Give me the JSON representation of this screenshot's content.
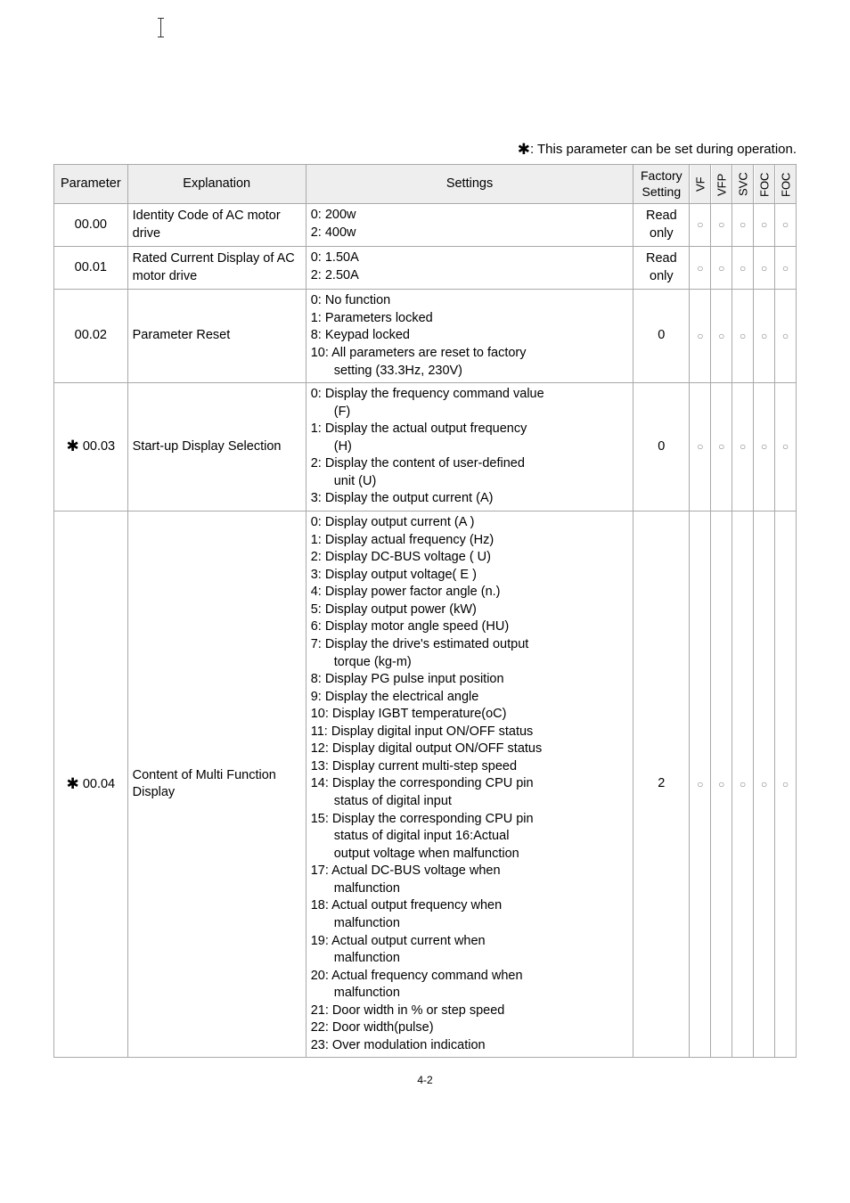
{
  "note_prefix_glyph": "✱",
  "note_text": ": This parameter can be set during operation.",
  "header": {
    "parameter": "Parameter",
    "explanation": "Explanation",
    "settings": "Settings",
    "factory_line1": "Factory",
    "factory_line2": "Setting",
    "modes": [
      "VF",
      "VFP",
      "SVC",
      "FOC",
      "FOC"
    ]
  },
  "rows": [
    {
      "param": "00.00",
      "star": false,
      "explanation": "Identity Code of AC motor drive",
      "settings": [
        "0: 200w",
        "2: 400w"
      ],
      "factory": "Read only",
      "marks": [
        "○",
        "○",
        "○",
        "○",
        "○"
      ]
    },
    {
      "param": "00.01",
      "star": false,
      "explanation": "Rated Current Display of AC motor drive",
      "settings": [
        "0: 1.50A",
        "2: 2.50A"
      ],
      "factory": "Read only",
      "marks": [
        "○",
        "○",
        "○",
        "○",
        "○"
      ]
    },
    {
      "param": "00.02",
      "star": false,
      "explanation": "Parameter Reset",
      "settings": [
        "0: No function",
        "1: Parameters locked",
        "8: Keypad locked",
        "10: All parameters are reset to factory",
        {
          "indent": 1,
          "text": "setting (33.3Hz, 230V)"
        }
      ],
      "factory": "0",
      "marks": [
        "○",
        "○",
        "○",
        "○",
        "○"
      ]
    },
    {
      "param": "00.03",
      "star": true,
      "explanation": "Start-up Display Selection",
      "settings": [
        "0: Display the frequency command value",
        {
          "indent": 1,
          "text": "(F)"
        },
        "1: Display the actual output frequency",
        {
          "indent": 1,
          "text": "(H)"
        },
        "2: Display the content of user-defined",
        {
          "indent": 1,
          "text": "unit (U)"
        },
        "3: Display the output current (A)"
      ],
      "factory": "0",
      "marks": [
        "○",
        "○",
        "○",
        "○",
        "○"
      ]
    },
    {
      "param": "00.04",
      "star": true,
      "explanation": "Content of Multi Function Display",
      "settings": [
        "0: Display output current (A )",
        "1: Display actual frequency (Hz)",
        "2: Display DC-BUS voltage ( U)",
        "3: Display output voltage( E )",
        "4: Display power factor angle (n.)",
        "5: Display output power (kW)",
        "6: Display motor angle speed (HU)",
        "7: Display the drive's estimated output",
        {
          "indent": 1,
          "text": "torque (kg-m)"
        },
        "8: Display PG pulse input position",
        "9: Display the electrical angle",
        "10: Display IGBT temperature(oC)",
        "11: Display digital input ON/OFF status",
        "12: Display digital output ON/OFF status",
        "13: Display current multi-step speed",
        "14: Display the corresponding CPU pin",
        {
          "indent": 1,
          "text": "status of digital input"
        },
        "15: Display the corresponding CPU pin",
        {
          "indent": 1,
          "text": "status of digital input 16:Actual"
        },
        {
          "indent": 1,
          "text": "output voltage when malfunction"
        },
        "17: Actual DC-BUS voltage when",
        {
          "indent": 1,
          "text": "malfunction"
        },
        "18: Actual output frequency when",
        {
          "indent": 1,
          "text": "malfunction"
        },
        "19: Actual output current when",
        {
          "indent": 1,
          "text": "malfunction"
        },
        "20: Actual frequency command when",
        {
          "indent": 1,
          "text": "malfunction"
        },
        "21: Door width in % or step speed",
        "22: Door width(pulse)",
        "23: Over modulation indication"
      ],
      "factory": "2",
      "marks": [
        "○",
        "○",
        "○",
        "○",
        "○"
      ]
    }
  ],
  "footer": "4-2",
  "colors": {
    "header_bg": "#eeeeee",
    "border": "#a9a9a9",
    "mark": "#808080"
  }
}
